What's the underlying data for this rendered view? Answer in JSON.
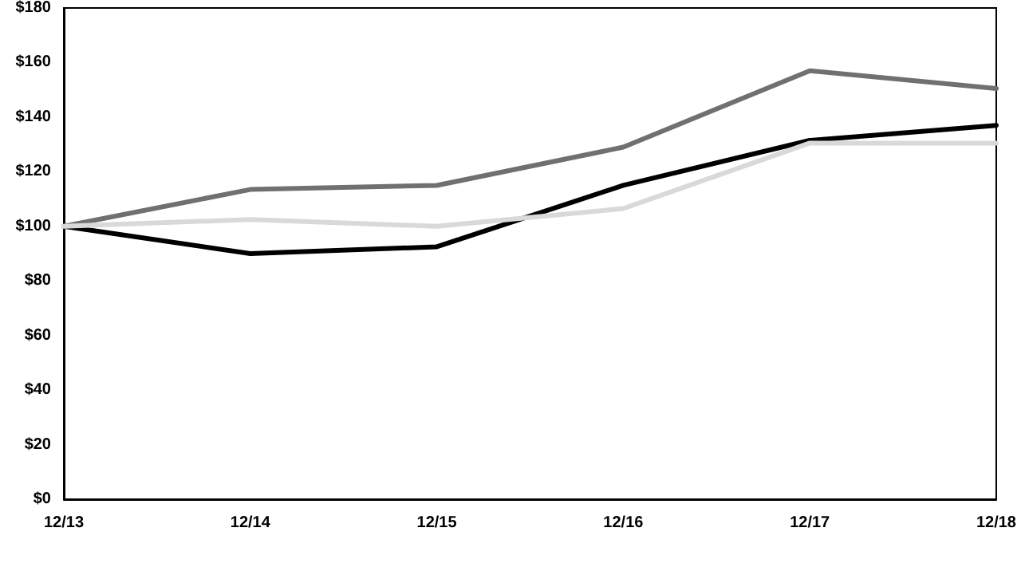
{
  "chart_data": {
    "type": "line",
    "categories": [
      "12/13",
      "12/14",
      "12/15",
      "12/16",
      "12/17",
      "12/18"
    ],
    "series": [
      {
        "color": "#000000",
        "values": [
          100,
          90,
          92.5,
          115,
          131.5,
          137
        ]
      },
      {
        "color": "#707070",
        "values": [
          100,
          113.5,
          115,
          129,
          157,
          150.5
        ]
      },
      {
        "color": "#d9d9d9",
        "values": [
          100,
          102.5,
          100,
          106.5,
          130.5,
          130.5
        ]
      }
    ],
    "ylim": [
      0,
      180
    ],
    "yticks": [
      {
        "value": 0,
        "label": "$0"
      },
      {
        "value": 20,
        "label": "$20"
      },
      {
        "value": 40,
        "label": "$40"
      },
      {
        "value": 60,
        "label": "$60"
      },
      {
        "value": 80,
        "label": "$80"
      },
      {
        "value": 100,
        "label": "$100"
      },
      {
        "value": 120,
        "label": "$120"
      },
      {
        "value": 140,
        "label": "$140"
      },
      {
        "value": 160,
        "label": "$160"
      },
      {
        "value": 180,
        "label": "$180"
      }
    ],
    "grid": false,
    "marker": "none",
    "line_style": "solid"
  }
}
